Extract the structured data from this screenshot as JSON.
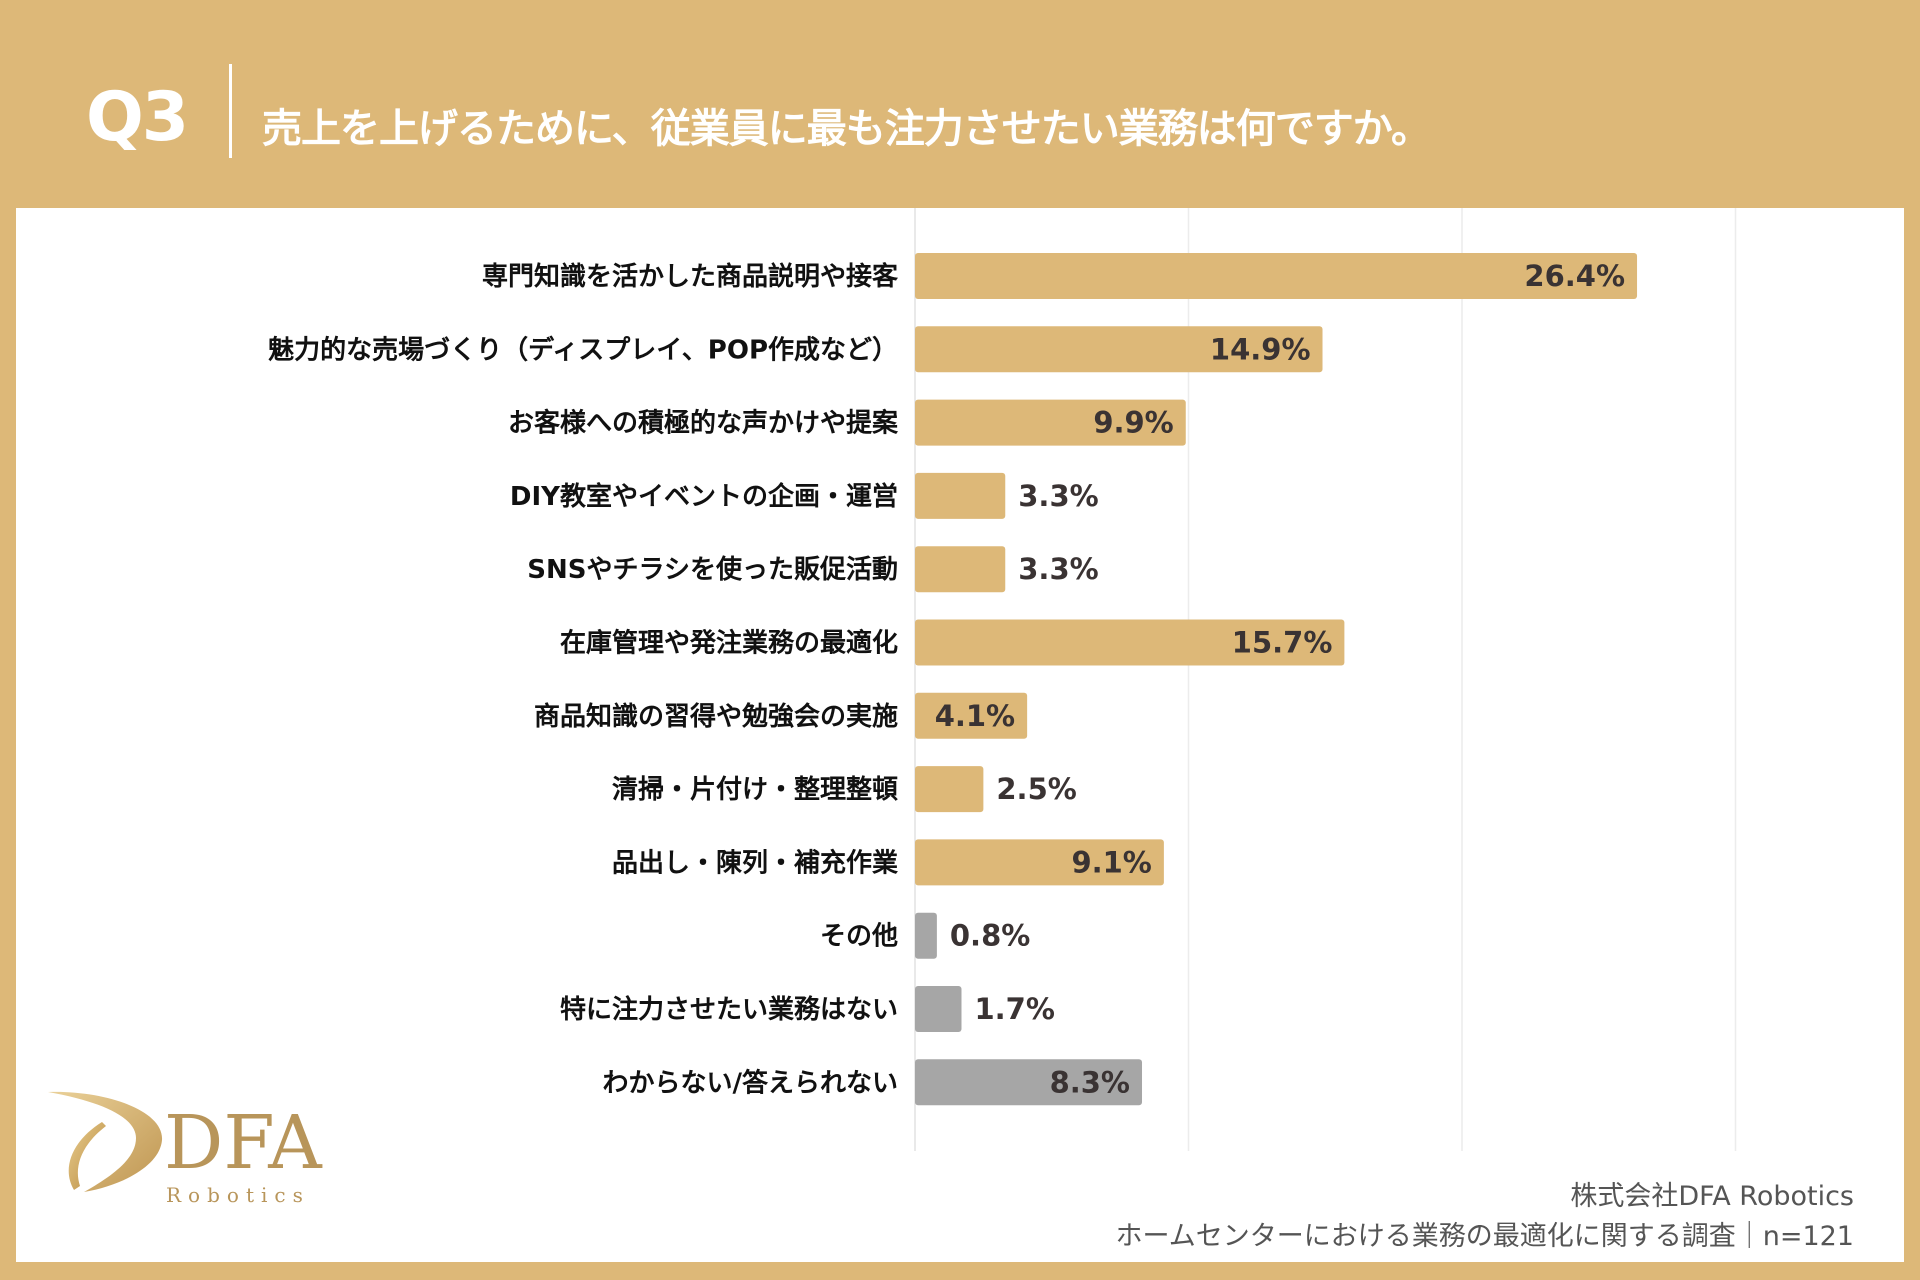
{
  "header": {
    "question_number": "Q3",
    "title": "売上を上げるために、従業員に最も注力させたい業務は何ですか。"
  },
  "chart_data": {
    "type": "bar",
    "orientation": "horizontal",
    "categories": [
      "専門知識を活かした商品説明や接客",
      "魅力的な売場づくり（ディスプレイ、POP作成など）",
      "お客様への積極的な声かけや提案",
      "DIY教室やイベントの企画・運営",
      "SNSやチラシを使った販促活動",
      "在庫管理や発注業務の最適化",
      "商品知識の習得や勉強会の実施",
      "清掃・片付け・整理整頓",
      "品出し・陳列・補充作業",
      "その他",
      "特に注力させたい業務はない",
      "わからない/答えられない"
    ],
    "values": [
      26.4,
      14.9,
      9.9,
      3.3,
      3.3,
      15.7,
      4.1,
      2.5,
      9.1,
      0.8,
      1.7,
      8.3
    ],
    "value_labels": [
      "26.4%",
      "14.9%",
      "9.9%",
      "3.3%",
      "3.3%",
      "15.7%",
      "4.1%",
      "2.5%",
      "9.1%",
      "0.8%",
      "1.7%",
      "8.3%"
    ],
    "bar_colors": [
      "#DDB878",
      "#DDB878",
      "#DDB878",
      "#DDB878",
      "#DDB878",
      "#DDB878",
      "#DDB878",
      "#DDB878",
      "#DDB878",
      "#A6A6A6",
      "#A6A6A6",
      "#A6A6A6"
    ],
    "xlim": [
      0,
      35
    ],
    "gridlines": [
      0,
      10,
      20,
      30
    ],
    "grid": true,
    "unit": "%"
  },
  "logo": {
    "name": "DFA",
    "sub": "Robotics"
  },
  "footer": {
    "company": "株式会社DFA Robotics",
    "survey": "ホームセンターにおける業務の最適化に関する調査｜n=121"
  },
  "colors": {
    "background": "#DDB878",
    "accent": "#DDB878",
    "other": "#A6A6A6"
  }
}
